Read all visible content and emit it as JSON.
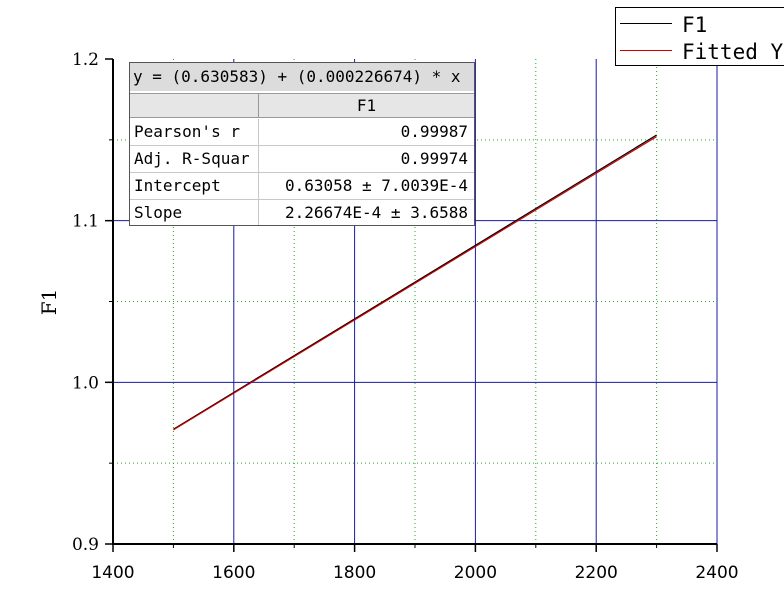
{
  "chart_data": {
    "type": "line",
    "xlabel": "",
    "ylabel": "F1",
    "xlim": [
      1400,
      2400
    ],
    "ylim": [
      0.9,
      1.2
    ],
    "x_ticks": [
      "1400",
      "1600",
      "1800",
      "2000",
      "2200",
      "2400"
    ],
    "y_ticks": [
      "0.9",
      "1.0",
      "1.1",
      "1.2"
    ],
    "grid": true,
    "legend_position": "top-right",
    "series": [
      {
        "name": "F1",
        "color": "#000000",
        "x": [
          1500,
          2300
        ],
        "y": [
          0.971,
          1.153
        ]
      },
      {
        "name": "Fitted Y",
        "color": "#cc0000",
        "x": [
          1500,
          2300
        ],
        "y": [
          0.9706,
          1.152
        ]
      }
    ],
    "fit_table": {
      "equation": "y = (0.630583) + (0.000226674) * x",
      "column_header": "F1",
      "rows": [
        {
          "label": "Pearson's r",
          "value": "0.99987"
        },
        {
          "label": "Adj. R-Squar",
          "value": "0.99974"
        },
        {
          "label": "Intercept",
          "value": "0.63058 ± 7.0039E-4"
        },
        {
          "label": "Slope",
          "value": "2.26674E-4 ± 3.6588"
        }
      ]
    }
  }
}
